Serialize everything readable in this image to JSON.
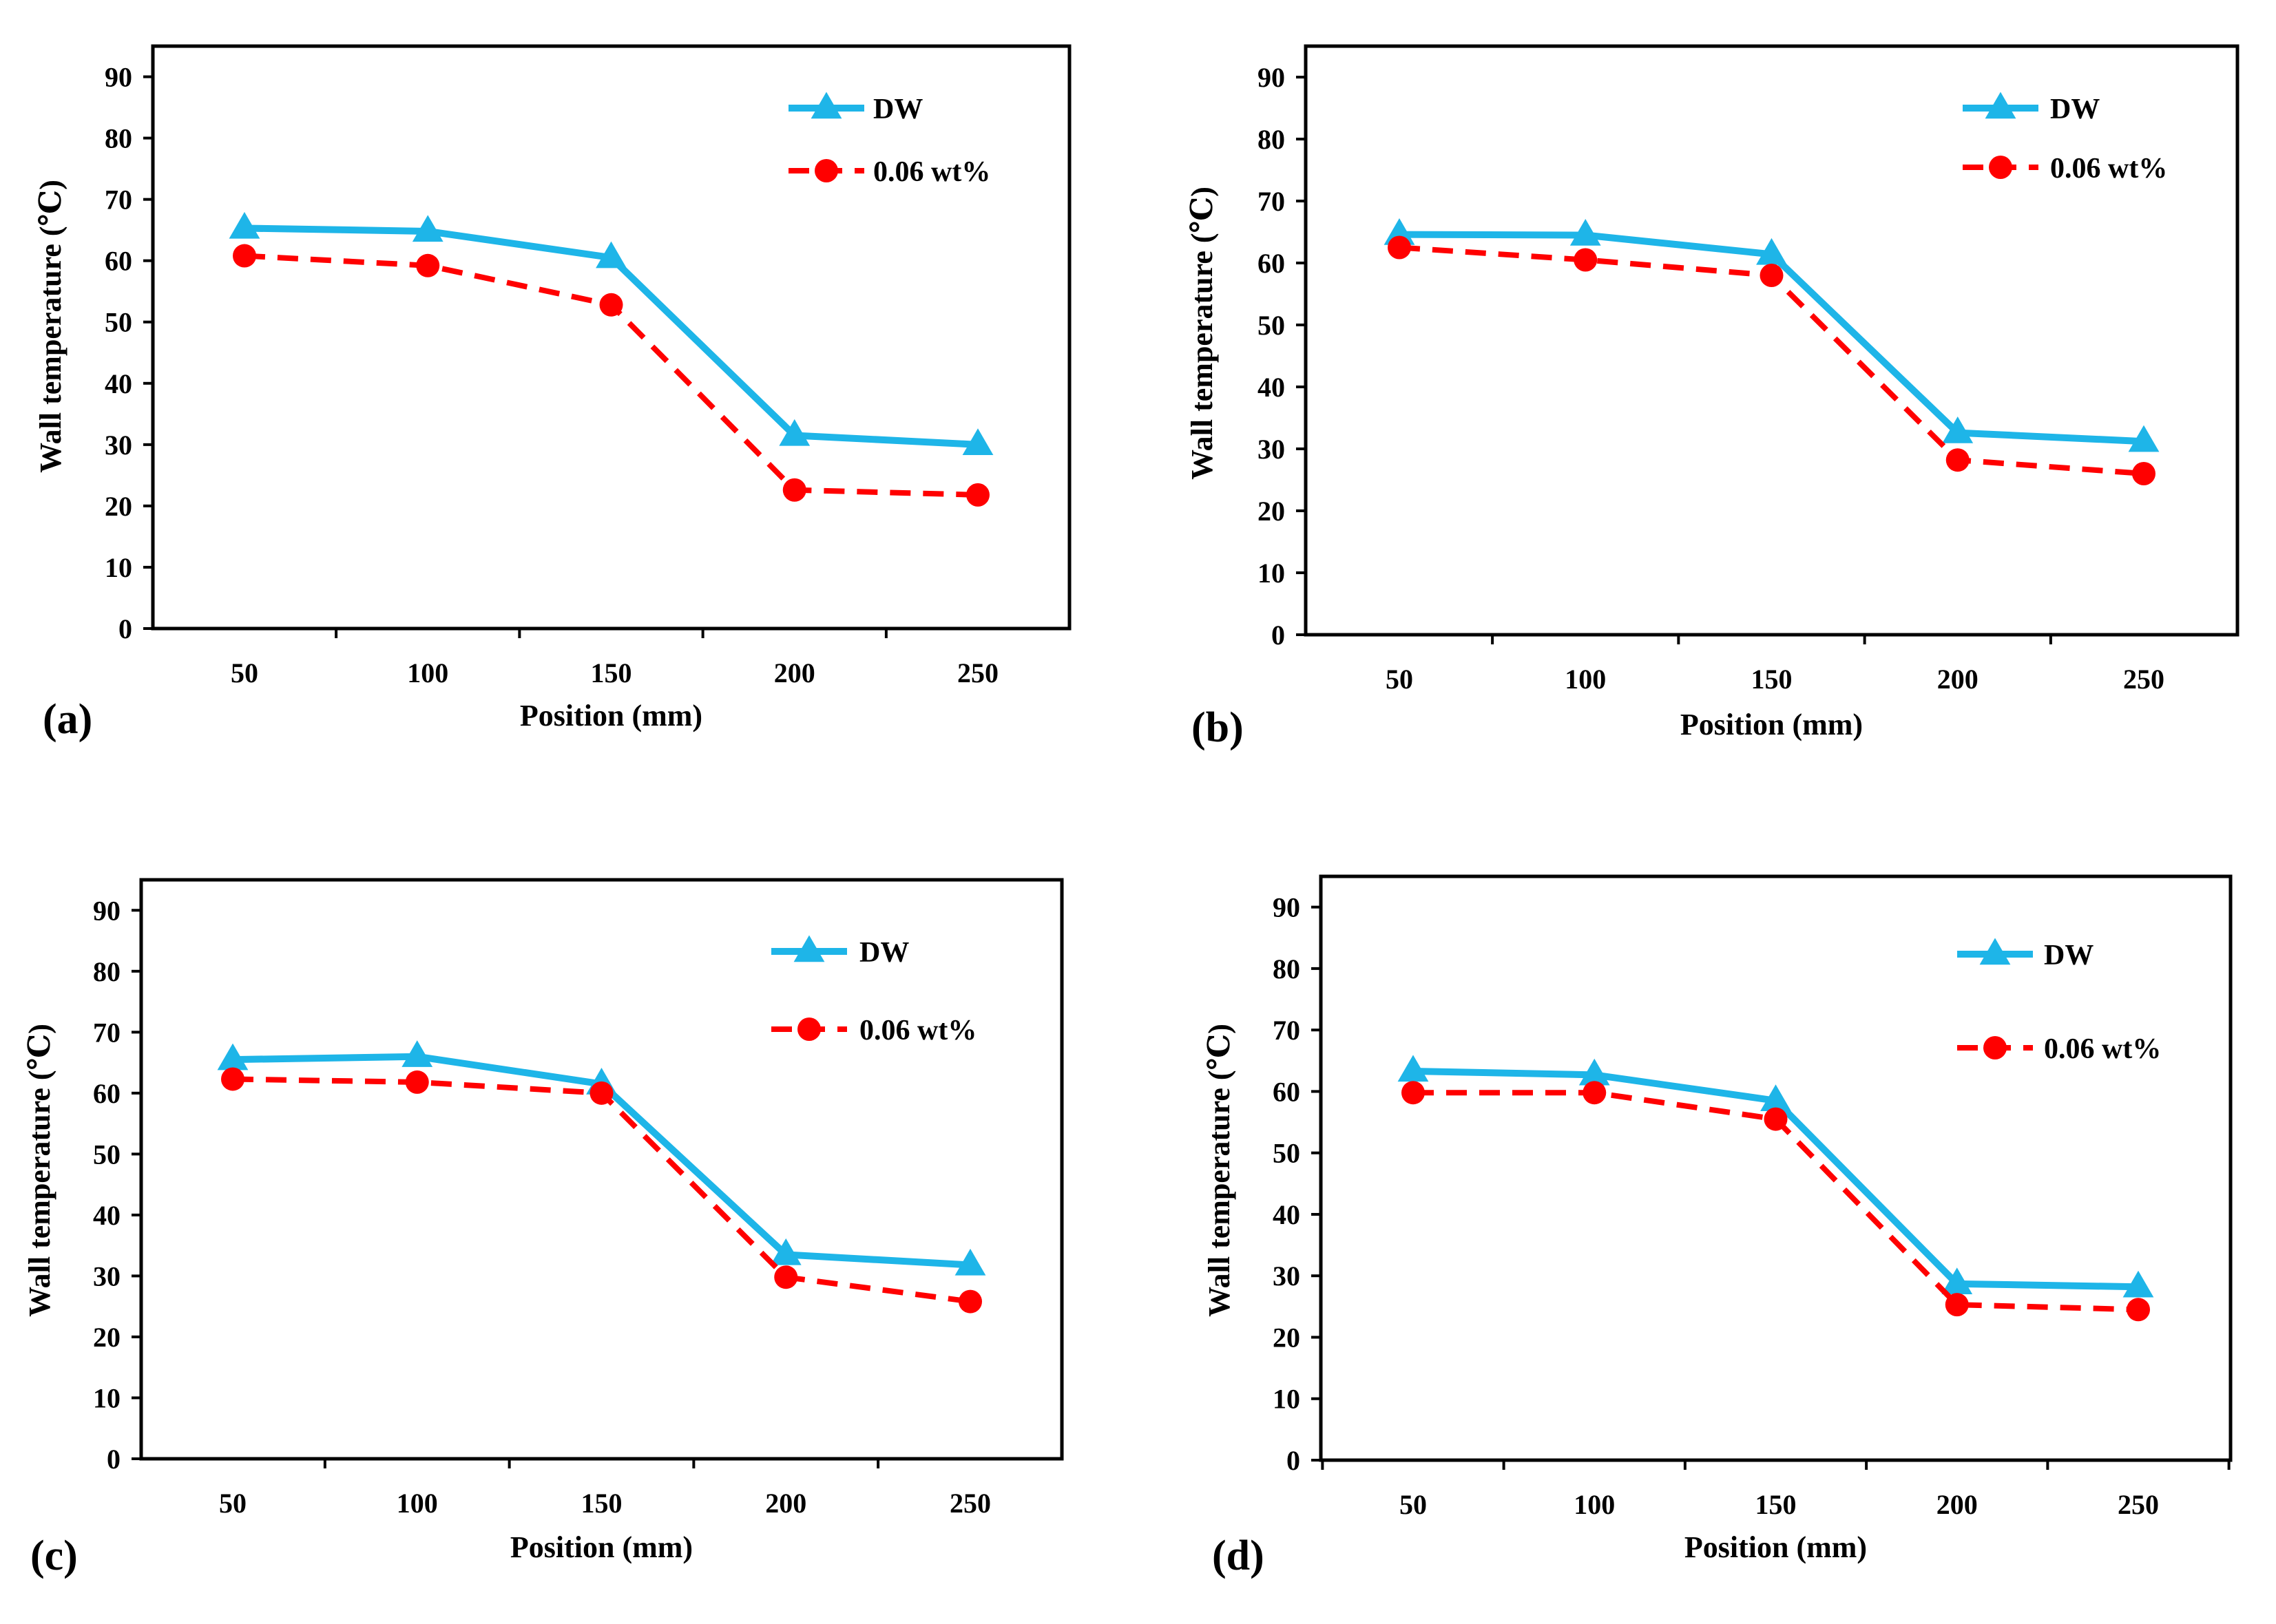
{
  "figure": {
    "colors": {
      "dw": "#1EB5E8",
      "wt": "#FF0000",
      "axis": "#000000"
    }
  },
  "chart_data": [
    {
      "type": "line",
      "panel_label": "(a)",
      "xlabel": "Position (mm)",
      "ylabel": "Wall temperature (℃)",
      "categories": [
        "50",
        "100",
        "150",
        "200",
        "250"
      ],
      "yticks": [
        "0",
        "10",
        "20",
        "30",
        "40",
        "50",
        "60",
        "70",
        "80",
        "90"
      ],
      "ylim": [
        0,
        95
      ],
      "legend_position": "top-right",
      "series": [
        {
          "name": "DW",
          "marker": "triangle",
          "line": "solid",
          "values": [
            65.3,
            64.8,
            60.5,
            31.5,
            30.0
          ]
        },
        {
          "name": "0.06 wt%",
          "marker": "circle",
          "line": "dashed",
          "values": [
            60.8,
            59.2,
            52.8,
            22.6,
            21.8
          ]
        }
      ]
    },
    {
      "type": "line",
      "panel_label": "(b)",
      "xlabel": "Position (mm)",
      "ylabel": "Wall temperature (℃)",
      "categories": [
        "50",
        "100",
        "150",
        "200",
        "250"
      ],
      "yticks": [
        "0",
        "10",
        "20",
        "30",
        "40",
        "50",
        "60",
        "70",
        "80",
        "90"
      ],
      "ylim": [
        0,
        95
      ],
      "legend_position": "top-right",
      "series": [
        {
          "name": "DW",
          "marker": "triangle",
          "line": "solid",
          "values": [
            64.6,
            64.5,
            61.4,
            32.6,
            31.2
          ]
        },
        {
          "name": "0.06 wt%",
          "marker": "circle",
          "line": "dashed",
          "values": [
            62.5,
            60.5,
            58.0,
            28.2,
            26.0
          ]
        }
      ]
    },
    {
      "type": "line",
      "panel_label": "(c)",
      "xlabel": "Position (mm)",
      "ylabel": "Wall temperature (℃)",
      "categories": [
        "50",
        "100",
        "150",
        "200",
        "250"
      ],
      "yticks": [
        "0",
        "10",
        "20",
        "30",
        "40",
        "50",
        "60",
        "70",
        "80",
        "90"
      ],
      "ylim": [
        0,
        95
      ],
      "legend_position": "top-right",
      "series": [
        {
          "name": "DW",
          "marker": "triangle",
          "line": "solid",
          "values": [
            65.5,
            66.0,
            61.5,
            33.5,
            31.8
          ]
        },
        {
          "name": "0.06 wt%",
          "marker": "circle",
          "line": "dashed",
          "values": [
            62.3,
            61.8,
            60.0,
            29.8,
            25.8
          ]
        }
      ]
    },
    {
      "type": "line",
      "panel_label": "(d)",
      "xlabel": "Position (mm)",
      "ylabel": "Wall temperature (℃)",
      "categories": [
        "50",
        "100",
        "150",
        "200",
        "250"
      ],
      "yticks": [
        "0",
        "10",
        "20",
        "30",
        "40",
        "50",
        "60",
        "70",
        "80",
        "90"
      ],
      "ylim": [
        0,
        95
      ],
      "legend_position": "top-right",
      "series": [
        {
          "name": "DW",
          "marker": "triangle",
          "line": "solid",
          "values": [
            63.3,
            62.7,
            58.5,
            28.7,
            28.2
          ]
        },
        {
          "name": "0.06 wt%",
          "marker": "circle",
          "line": "dashed",
          "values": [
            59.8,
            59.8,
            55.5,
            25.3,
            24.5
          ]
        }
      ]
    }
  ]
}
